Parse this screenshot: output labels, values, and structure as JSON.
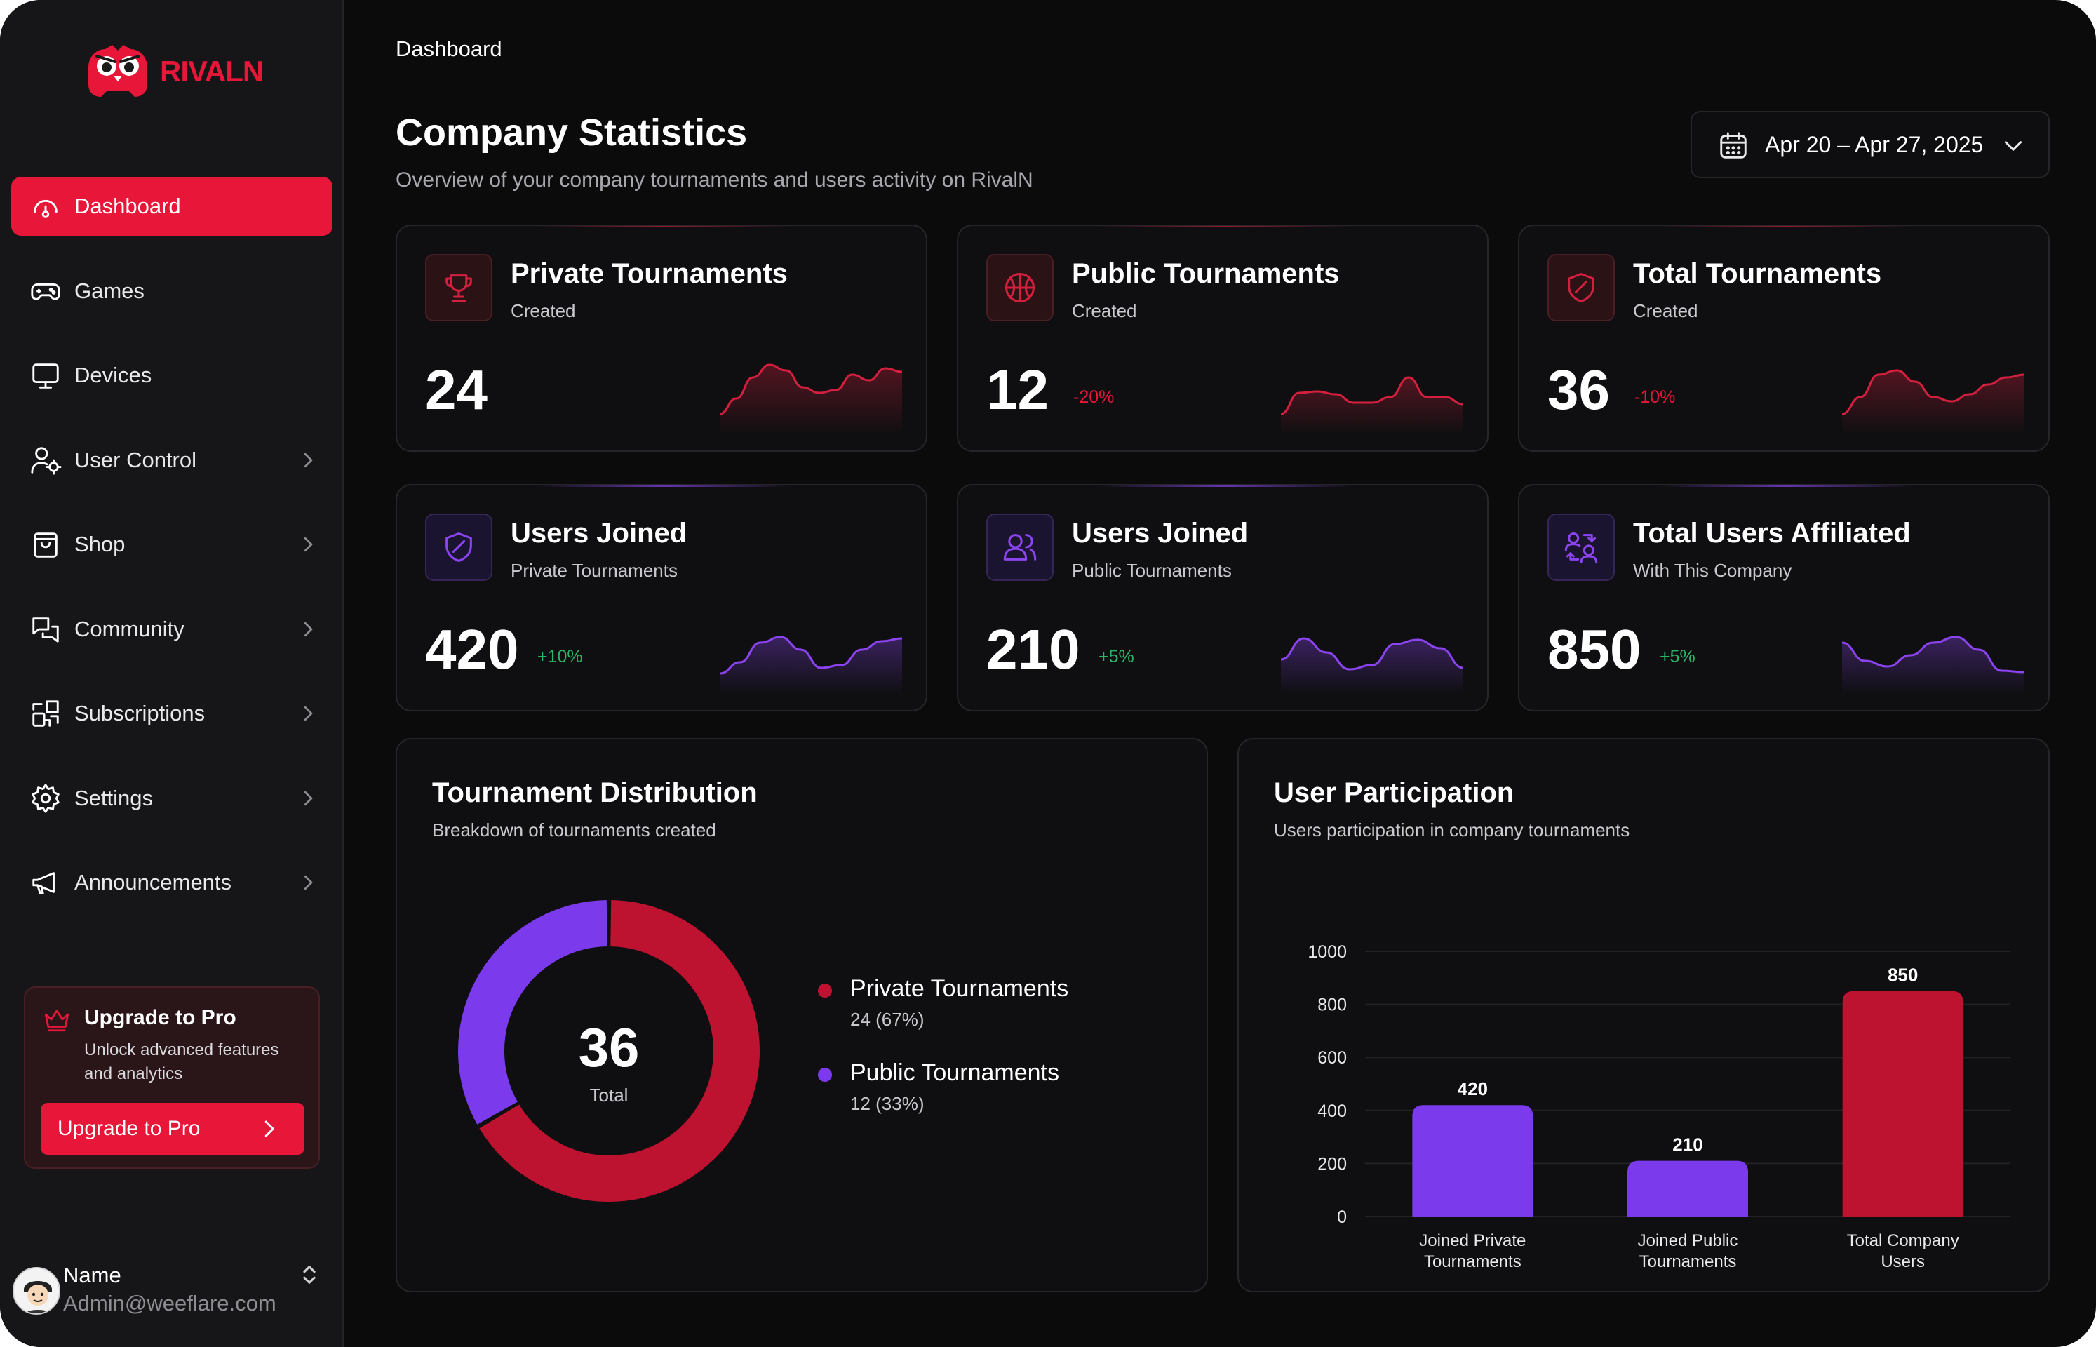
{
  "brand": {
    "name": "RIVALN",
    "accent": "#e8173a",
    "secondary": "#7c3aed"
  },
  "sidebar": {
    "items": [
      {
        "label": "Dashboard",
        "icon": "dashboard-icon",
        "active": true
      },
      {
        "label": "Games",
        "icon": "gamepad-icon"
      },
      {
        "label": "Devices",
        "icon": "monitor-icon"
      },
      {
        "label": "User Control",
        "icon": "user-settings-icon",
        "chevron": true
      },
      {
        "label": "Shop",
        "icon": "shopping-bag-icon",
        "chevron": true
      },
      {
        "label": "Community",
        "icon": "chat-icon",
        "chevron": true
      },
      {
        "label": "Subscriptions",
        "icon": "subscriptions-icon",
        "chevron": true
      },
      {
        "label": "Settings",
        "icon": "gear-icon",
        "chevron": true
      },
      {
        "label": "Announcements",
        "icon": "megaphone-icon",
        "chevron": true
      }
    ],
    "upgrade": {
      "title": "Upgrade to Pro",
      "description": "Unlock advanced features and analytics",
      "button": "Upgrade to Pro"
    },
    "profile": {
      "name": "Name",
      "email": "Admin@weeflare.com"
    }
  },
  "header": {
    "breadcrumb": "Dashboard",
    "title": "Company Statistics",
    "subtitle": "Overview of your company tournaments and users activity on RivalN",
    "date_range": "Apr 20 – Apr 27, 2025"
  },
  "stats": [
    {
      "title": "Private Tournaments",
      "subtitle": "Created",
      "value": "24",
      "delta": "",
      "tone": "red",
      "icon": "trophy-icon",
      "spark": [
        10,
        32,
        62,
        80,
        72,
        48,
        40,
        44,
        66,
        58,
        75,
        70
      ]
    },
    {
      "title": "Public Tournaments",
      "subtitle": "Created",
      "value": "12",
      "delta": "-20%",
      "tone": "red",
      "icon": "basketball-icon",
      "spark": [
        10,
        40,
        42,
        38,
        26,
        26,
        34,
        62,
        34,
        34,
        24
      ]
    },
    {
      "title": "Total Tournaments",
      "subtitle": "Created",
      "value": "36",
      "delta": "-10%",
      "tone": "red",
      "icon": "shield-icon",
      "spark": [
        10,
        34,
        66,
        72,
        56,
        34,
        28,
        38,
        52,
        62,
        66
      ]
    },
    {
      "title": "Users Joined",
      "subtitle": "Private Tournaments",
      "value": "420",
      "delta": "+10%",
      "tone": "purple",
      "icon": "shield-icon",
      "spark": [
        10,
        26,
        54,
        62,
        44,
        18,
        22,
        44,
        56,
        60
      ]
    },
    {
      "title": "Users Joined",
      "subtitle": "Public Tournaments",
      "value": "210",
      "delta": "+5%",
      "tone": "purple",
      "icon": "users-icon",
      "spark": [
        30,
        60,
        40,
        16,
        22,
        52,
        58,
        46,
        18
      ]
    },
    {
      "title": "Total Users Affiliated",
      "subtitle": "With This Company",
      "value": "850",
      "delta": "+5%",
      "tone": "purple",
      "icon": "user-switch-icon",
      "spark": [
        54,
        28,
        20,
        36,
        54,
        62,
        44,
        14,
        12
      ]
    }
  ],
  "distribution": {
    "title": "Tournament Distribution",
    "subtitle": "Breakdown of tournaments created",
    "total": "36",
    "total_label": "Total",
    "items": [
      {
        "name": "Private Tournaments",
        "value": 24,
        "detail": "24 (67%)",
        "color": "#be1330"
      },
      {
        "name": "Public Tournaments",
        "value": 12,
        "detail": "12 (33%)",
        "color": "#7c3aed"
      }
    ]
  },
  "participation": {
    "title": "User Participation",
    "subtitle": "Users participation in company tournaments"
  },
  "chart_data": {
    "type": "bar",
    "categories": [
      "Joined Private Tournaments",
      "Joined Public Tournaments",
      "Total Company Users"
    ],
    "category_lines": [
      [
        "Joined Private",
        "Tournaments"
      ],
      [
        "Joined Public",
        "Tournaments"
      ],
      [
        "Total Company",
        "Users"
      ]
    ],
    "values": [
      420,
      210,
      850
    ],
    "colors": [
      "#7c3aed",
      "#7c3aed",
      "#be1330"
    ],
    "ylim": [
      0,
      1000
    ],
    "yticks": [
      0,
      200,
      400,
      600,
      800,
      1000
    ],
    "grid": true
  }
}
